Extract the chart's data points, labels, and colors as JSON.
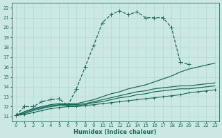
{
  "xlabel": "Humidex (Indice chaleur)",
  "bg_color": "#cce8e4",
  "grid_color": "#b0d8d4",
  "line_color": "#1a6b5a",
  "xlim": [
    -0.5,
    23.5
  ],
  "ylim": [
    10.5,
    22.5
  ],
  "xticks": [
    0,
    1,
    2,
    3,
    4,
    5,
    6,
    7,
    8,
    9,
    10,
    11,
    12,
    13,
    14,
    15,
    16,
    17,
    18,
    19,
    20,
    21,
    22,
    23
  ],
  "yticks": [
    11,
    12,
    13,
    14,
    15,
    16,
    17,
    18,
    19,
    20,
    21,
    22
  ],
  "series": [
    {
      "x": [
        0,
        1,
        2,
        3,
        4,
        5,
        6,
        7,
        8,
        9,
        10,
        11,
        12,
        13,
        14,
        15,
        16,
        17,
        18,
        19,
        20
      ],
      "y": [
        11.1,
        12.0,
        12.0,
        12.5,
        12.7,
        12.8,
        12.1,
        13.8,
        16.0,
        18.2,
        20.5,
        21.3,
        21.7,
        21.3,
        21.6,
        21.0,
        21.0,
        21.0,
        20.0,
        16.5,
        16.3
      ],
      "linestyle": "--",
      "marker": "+",
      "ms": 4,
      "lw": 0.9
    },
    {
      "x": [
        0,
        1,
        2,
        3,
        4,
        5,
        6,
        7,
        8,
        9,
        10,
        11,
        12,
        13,
        14,
        15,
        16,
        17,
        18,
        19,
        20,
        21,
        22,
        23
      ],
      "y": [
        11.1,
        11.5,
        11.8,
        12.0,
        12.2,
        12.3,
        12.3,
        12.3,
        12.5,
        12.7,
        13.0,
        13.3,
        13.5,
        13.8,
        14.0,
        14.2,
        14.5,
        14.8,
        15.1,
        15.5,
        15.8,
        16.0,
        16.2,
        16.4
      ],
      "linestyle": "-",
      "marker": null,
      "ms": 0,
      "lw": 0.9
    },
    {
      "x": [
        0,
        1,
        2,
        3,
        4,
        5,
        6,
        7,
        8,
        9,
        10,
        11,
        12,
        13,
        14,
        15,
        16,
        17,
        18,
        19,
        20,
        21,
        22,
        23
      ],
      "y": [
        11.1,
        11.4,
        11.7,
        11.9,
        12.1,
        12.2,
        12.2,
        12.2,
        12.3,
        12.5,
        12.7,
        12.9,
        13.1,
        13.3,
        13.5,
        13.6,
        13.8,
        13.9,
        14.0,
        14.1,
        14.1,
        14.2,
        14.3,
        14.4
      ],
      "linestyle": "-",
      "marker": null,
      "ms": 0,
      "lw": 0.9
    },
    {
      "x": [
        0,
        1,
        2,
        3,
        4,
        5,
        6,
        7,
        8,
        9,
        10,
        11,
        12,
        13,
        14,
        15,
        16,
        17,
        18,
        19,
        20,
        21,
        22,
        23
      ],
      "y": [
        11.1,
        11.3,
        11.6,
        11.8,
        12.0,
        12.1,
        12.1,
        12.1,
        12.2,
        12.4,
        12.5,
        12.7,
        12.9,
        13.0,
        13.2,
        13.3,
        13.5,
        13.6,
        13.7,
        13.8,
        13.8,
        13.9,
        14.0,
        14.1
      ],
      "linestyle": "-",
      "marker": null,
      "ms": 0,
      "lw": 0.9
    },
    {
      "x": [
        0,
        1,
        2,
        3,
        4,
        5,
        6,
        7,
        8,
        9,
        10,
        11,
        12,
        13,
        14,
        15,
        16,
        17,
        18,
        19,
        20,
        21,
        22,
        23
      ],
      "y": [
        11.1,
        11.2,
        11.4,
        11.6,
        11.8,
        11.9,
        12.0,
        12.0,
        12.1,
        12.2,
        12.3,
        12.4,
        12.5,
        12.6,
        12.7,
        12.8,
        12.9,
        13.0,
        13.1,
        13.2,
        13.4,
        13.5,
        13.6,
        13.7
      ],
      "linestyle": "-",
      "marker": "+",
      "ms": 3,
      "lw": 0.8
    }
  ]
}
